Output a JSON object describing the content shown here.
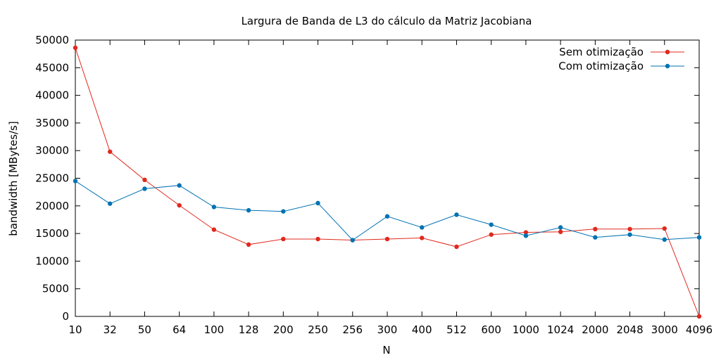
{
  "chart_data": {
    "type": "line",
    "title": "Largura de Banda de L3 do cálculo da Matriz Jacobiana",
    "xlabel": "N",
    "ylabel": "bandwidth [MBytes/s]",
    "categories": [
      "10",
      "32",
      "50",
      "64",
      "100",
      "128",
      "200",
      "250",
      "256",
      "300",
      "400",
      "512",
      "600",
      "1000",
      "1024",
      "2000",
      "2048",
      "3000",
      "4096"
    ],
    "ylim": [
      0,
      50000
    ],
    "yticks": [
      0,
      5000,
      10000,
      15000,
      20000,
      25000,
      30000,
      35000,
      40000,
      45000,
      50000
    ],
    "legend_position": "top-right",
    "grid": false,
    "series": [
      {
        "name": "Sem otimização",
        "color": "#e0291e",
        "values": [
          48600,
          29800,
          24700,
          20100,
          15700,
          13000,
          14000,
          14000,
          13800,
          14000,
          14200,
          12600,
          14800,
          15200,
          15300,
          15800,
          15800,
          15900,
          0
        ]
      },
      {
        "name": "Com otimização",
        "color": "#0072b2",
        "values": [
          24500,
          20400,
          23100,
          23700,
          19800,
          19200,
          19000,
          20500,
          13800,
          18100,
          16100,
          18400,
          16600,
          14600,
          16100,
          14300,
          14800,
          13900,
          14300
        ]
      }
    ]
  }
}
